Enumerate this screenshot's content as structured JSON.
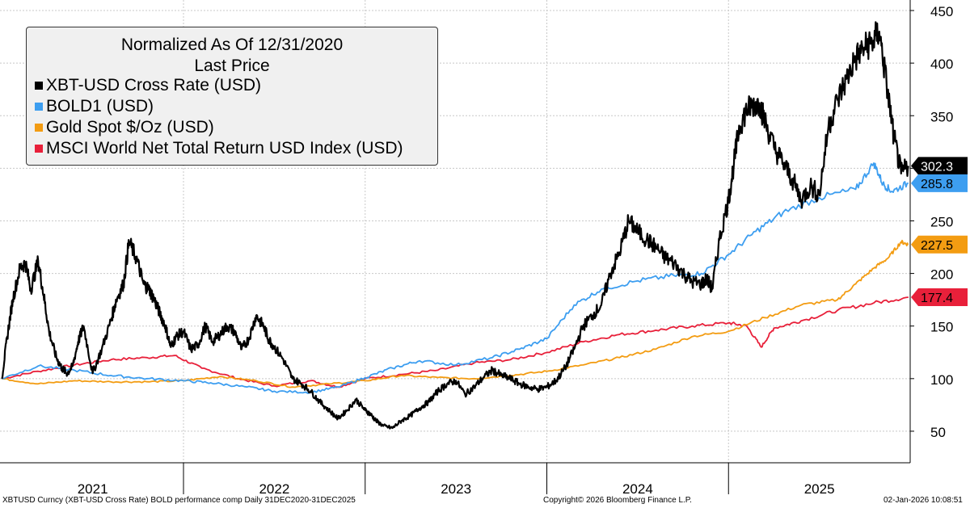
{
  "chart_data": {
    "type": "line",
    "title": "Normalized As Of 12/31/2020",
    "subtitle": "Last Price",
    "xlabel": "",
    "ylabel": "",
    "x_categories": [
      "2021",
      "2022",
      "2023",
      "2024",
      "2025"
    ],
    "x_range": [
      2020.99,
      2026.0
    ],
    "yticks": [
      50,
      100,
      150,
      200,
      250,
      300,
      350,
      400,
      450
    ],
    "ylim": [
      20,
      460
    ],
    "grid": true,
    "series": [
      {
        "name": "XBT-USD Cross Rate (USD)",
        "color": "#000000",
        "last_label": "302.3",
        "x": [
          2021.0,
          2021.03,
          2021.06,
          2021.1,
          2021.13,
          2021.16,
          2021.2,
          2021.23,
          2021.26,
          2021.3,
          2021.33,
          2021.36,
          2021.39,
          2021.42,
          2021.45,
          2021.5,
          2021.55,
          2021.6,
          2021.63,
          2021.67,
          2021.7,
          2021.74,
          2021.78,
          2021.81,
          2021.84,
          2021.87,
          2021.9,
          2021.93,
          2021.96,
          2022.0,
          2022.04,
          2022.08,
          2022.12,
          2022.16,
          2022.2,
          2022.24,
          2022.28,
          2022.32,
          2022.36,
          2022.4,
          2022.44,
          2022.47,
          2022.5,
          2022.55,
          2022.6,
          2022.65,
          2022.7,
          2022.75,
          2022.8,
          2022.85,
          2022.9,
          2022.95,
          2023.0,
          2023.03,
          2023.06,
          2023.1,
          2023.15,
          2023.2,
          2023.25,
          2023.3,
          2023.35,
          2023.4,
          2023.45,
          2023.5,
          2023.55,
          2023.6,
          2023.65,
          2023.7,
          2023.75,
          2023.8,
          2023.85,
          2023.9,
          2023.95,
          2024.0,
          2024.05,
          2024.1,
          2024.15,
          2024.2,
          2024.25,
          2024.3,
          2024.35,
          2024.4,
          2024.45,
          2024.5,
          2024.55,
          2024.6,
          2024.65,
          2024.7,
          2024.75,
          2024.8,
          2024.85,
          2024.88,
          2024.91,
          2024.95,
          2025.0,
          2025.03,
          2025.06,
          2025.1,
          2025.13,
          2025.17,
          2025.2,
          2025.25,
          2025.3,
          2025.35,
          2025.4,
          2025.45,
          2025.5,
          2025.55,
          2025.6,
          2025.65,
          2025.7,
          2025.75,
          2025.79,
          2025.83,
          2025.87,
          2025.91,
          2025.95,
          2025.99
        ],
        "values": [
          100,
          140,
          175,
          205,
          210,
          185,
          212,
          180,
          145,
          120,
          110,
          105,
          112,
          135,
          150,
          105,
          128,
          155,
          175,
          190,
          230,
          215,
          190,
          185,
          175,
          162,
          150,
          130,
          140,
          145,
          128,
          132,
          150,
          135,
          142,
          150,
          145,
          128,
          138,
          160,
          150,
          137,
          130,
          118,
          100,
          95,
          88,
          78,
          70,
          62,
          70,
          80,
          70,
          66,
          60,
          55,
          53,
          60,
          65,
          72,
          78,
          88,
          95,
          98,
          85,
          92,
          101,
          108,
          103,
          100,
          95,
          92,
          90,
          92,
          98,
          110,
          128,
          150,
          160,
          170,
          200,
          220,
          250,
          240,
          232,
          225,
          215,
          210,
          200,
          192,
          190,
          195,
          185,
          232,
          270,
          305,
          340,
          355,
          360,
          362,
          345,
          320,
          305,
          290,
          270,
          283,
          275,
          340,
          365,
          385,
          405,
          415,
          420,
          430,
          380,
          330,
          295,
          302.3
        ]
      },
      {
        "name": "BOLD1 (USD)",
        "color": "#3d9ef0",
        "last_label": "285.8",
        "x": [
          2021.0,
          2021.2,
          2021.4,
          2021.6,
          2021.8,
          2022.0,
          2022.15,
          2022.35,
          2022.5,
          2022.7,
          2022.85,
          2023.0,
          2023.15,
          2023.3,
          2023.5,
          2023.7,
          2023.85,
          2024.0,
          2024.15,
          2024.3,
          2024.5,
          2024.7,
          2024.85,
          2025.0,
          2025.15,
          2025.3,
          2025.5,
          2025.7,
          2025.8,
          2025.85,
          2025.9,
          2025.99
        ],
        "values": [
          100,
          112,
          108,
          103,
          100,
          98,
          96,
          92,
          88,
          87,
          92,
          101,
          110,
          117,
          113,
          120,
          128,
          138,
          170,
          185,
          193,
          198,
          200,
          218,
          240,
          258,
          272,
          280,
          305,
          285,
          278,
          285.8
        ]
      },
      {
        "name": "Gold Spot $/Oz (USD)",
        "color": "#f39c12",
        "last_label": "227.5",
        "x": [
          2021.0,
          2021.2,
          2021.4,
          2021.6,
          2021.8,
          2022.0,
          2022.2,
          2022.4,
          2022.6,
          2022.8,
          2023.0,
          2023.2,
          2023.4,
          2023.6,
          2023.8,
          2024.0,
          2024.2,
          2024.4,
          2024.6,
          2024.8,
          2025.0,
          2025.2,
          2025.4,
          2025.6,
          2025.7,
          2025.8,
          2025.88,
          2025.95,
          2025.99
        ],
        "values": [
          100,
          95,
          98,
          97,
          97,
          98,
          102,
          98,
          92,
          95,
          98,
          103,
          101,
          100,
          103,
          107,
          113,
          120,
          128,
          140,
          145,
          158,
          170,
          175,
          190,
          205,
          215,
          230,
          227.5
        ]
      },
      {
        "name": "MSCI World Net Total Return USD Index (USD)",
        "color": "#e8203a",
        "last_label": "177.4",
        "x": [
          2021.0,
          2021.2,
          2021.4,
          2021.6,
          2021.8,
          2021.95,
          2022.1,
          2022.3,
          2022.5,
          2022.7,
          2022.85,
          2023.0,
          2023.2,
          2023.4,
          2023.6,
          2023.8,
          2024.0,
          2024.2,
          2024.4,
          2024.6,
          2024.8,
          2025.0,
          2025.1,
          2025.18,
          2025.25,
          2025.4,
          2025.6,
          2025.8,
          2025.99
        ],
        "values": [
          100,
          107,
          113,
          118,
          120,
          122,
          110,
          100,
          93,
          98,
          92,
          100,
          104,
          108,
          115,
          118,
          125,
          135,
          142,
          146,
          150,
          153,
          150,
          130,
          148,
          155,
          165,
          172,
          177.4
        ]
      }
    ]
  },
  "footer": {
    "left": "XBTUSD Curncy (XBT-USD Cross Rate) BOLD performance comp Daily 31DEC2020-31DEC2025",
    "center": "Copyright© 2026 Bloomberg Finance L.P.",
    "right": "02-Jan-2026 10:08:51"
  }
}
